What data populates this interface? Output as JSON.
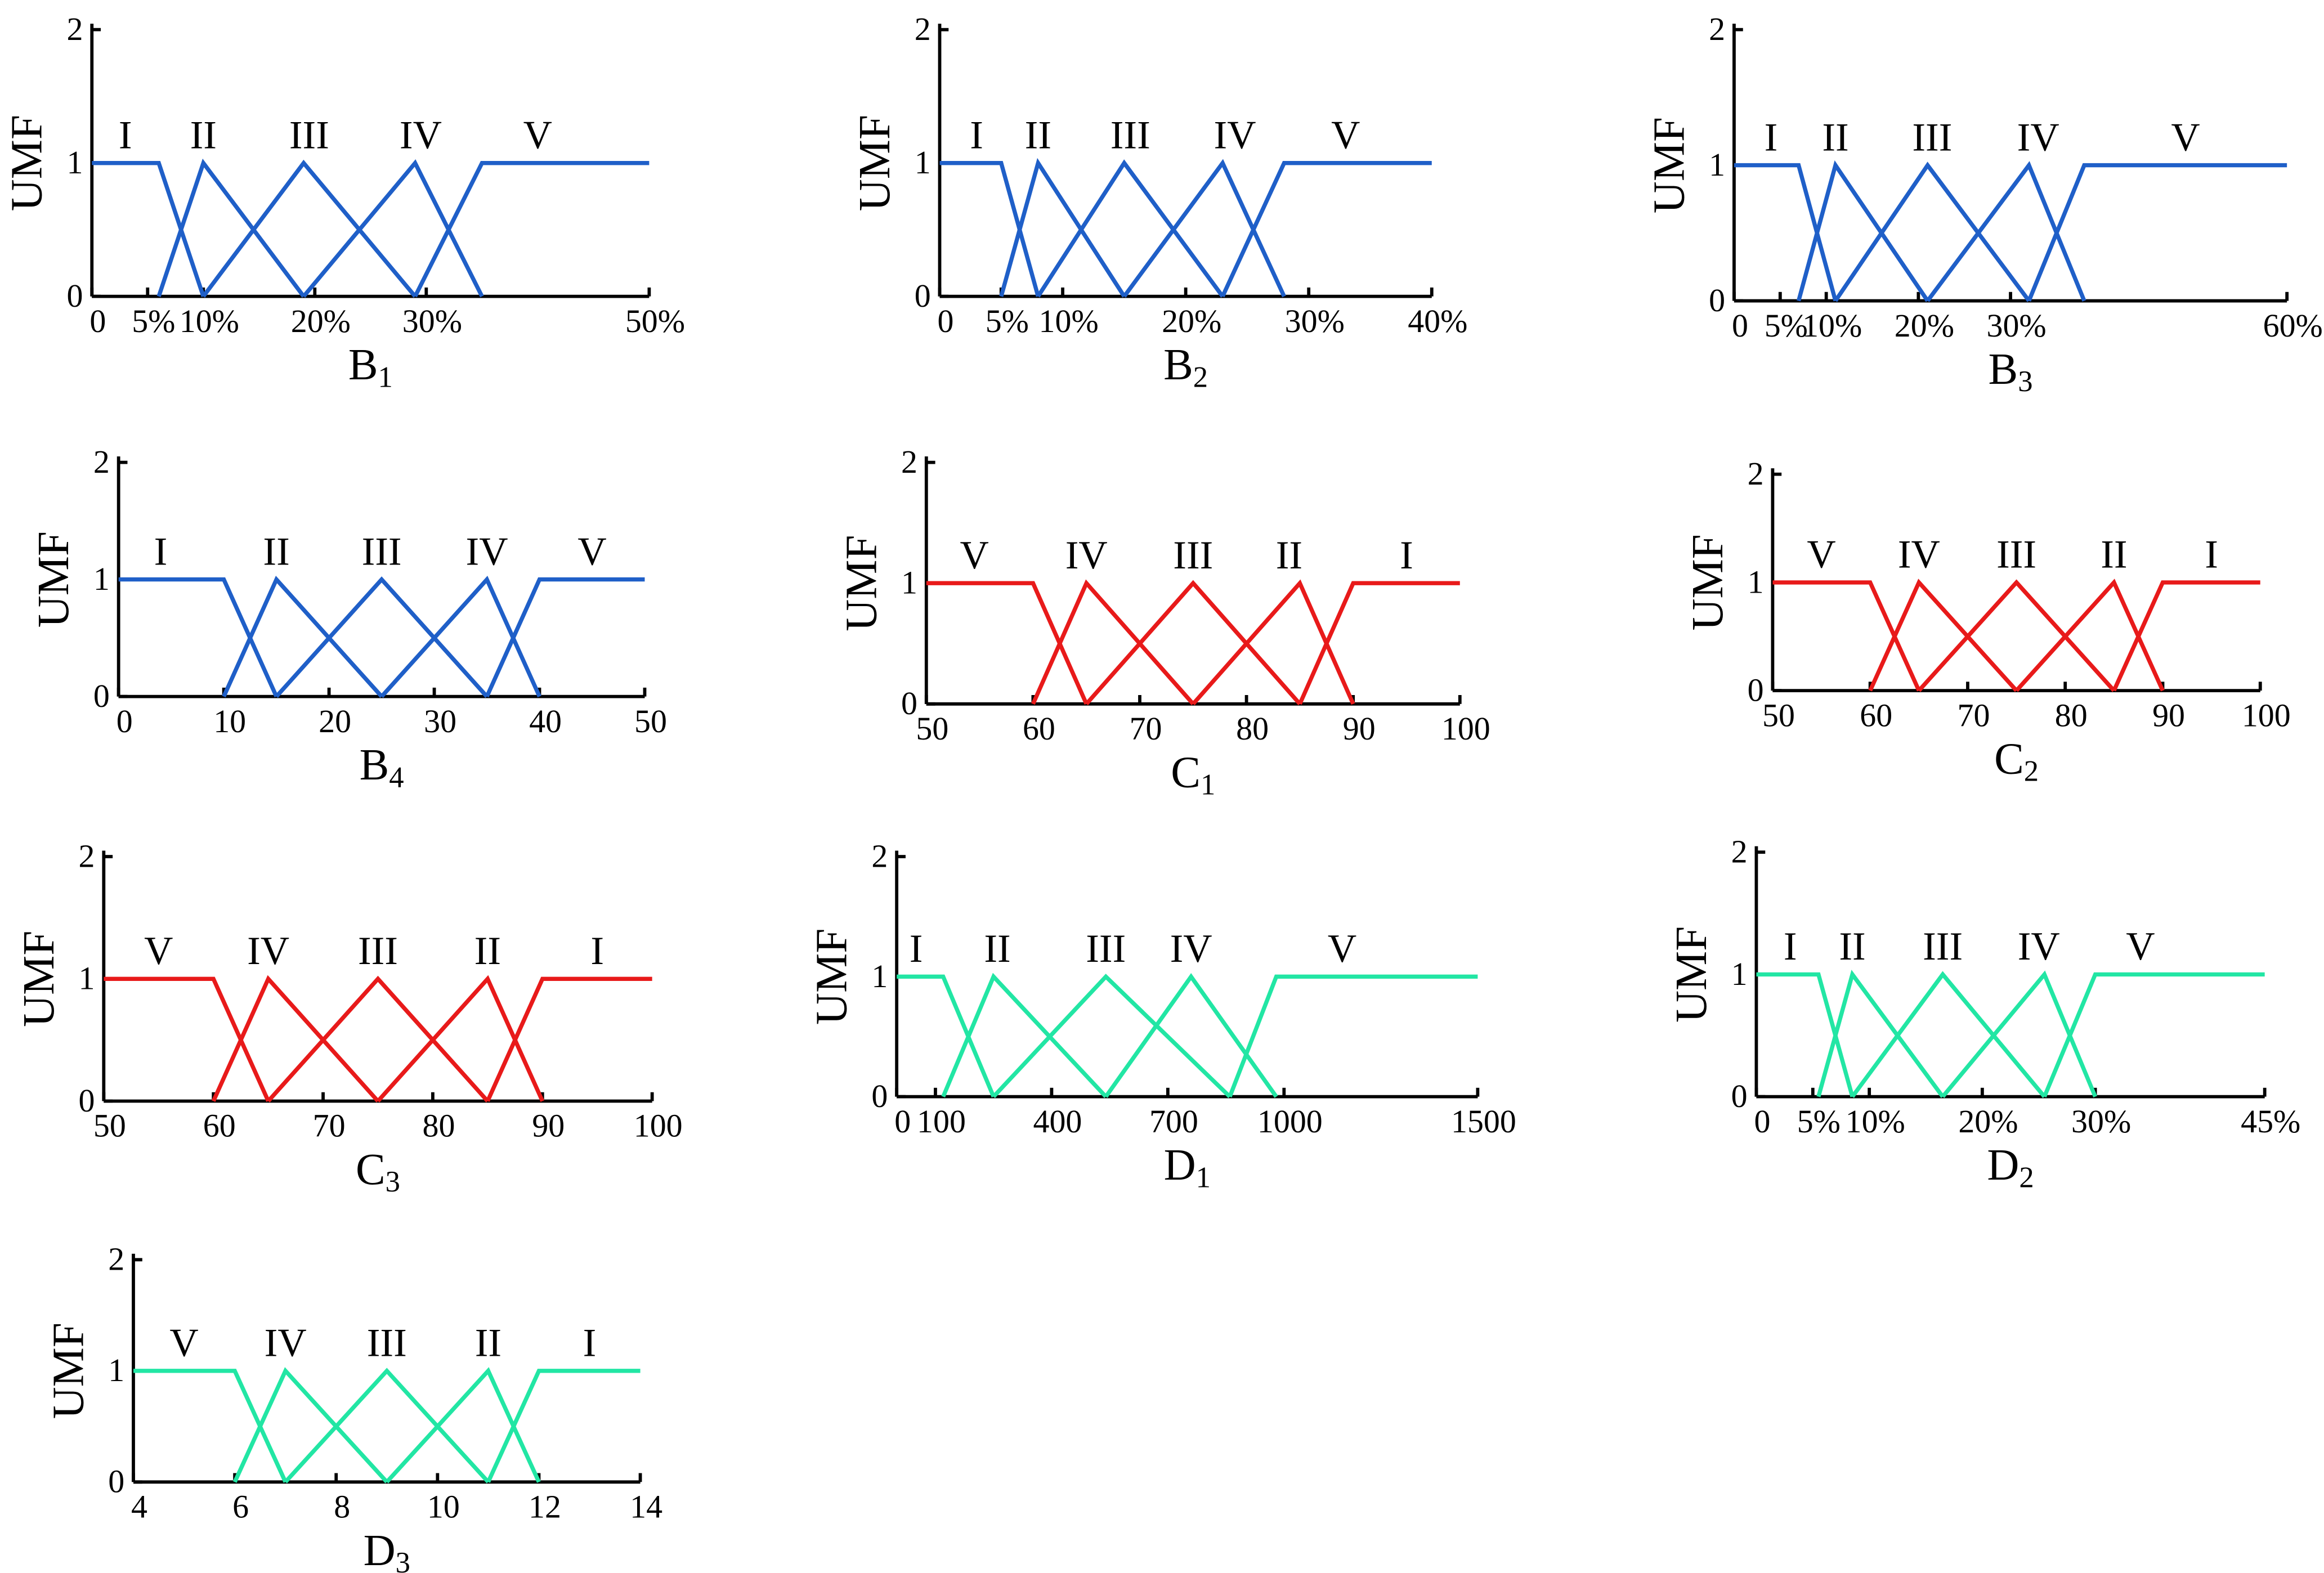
{
  "chart_data": [
    {
      "id": "B1",
      "type": "line",
      "title_main": "B",
      "title_sub": "1",
      "ylabel": "UMF",
      "y_ticks": [
        "0",
        "1",
        "2"
      ],
      "x_ticks": [
        {
          "v": 0,
          "t": "0"
        },
        {
          "v": 5,
          "t": "5%"
        },
        {
          "v": 10,
          "t": "10%"
        },
        {
          "v": 20,
          "t": "20%"
        },
        {
          "v": 30,
          "t": "30%"
        },
        {
          "v": 50,
          "t": "50%"
        }
      ],
      "xlim": [
        0,
        50
      ],
      "ylim": [
        0,
        2
      ],
      "color": "#1f5fc8",
      "series": [
        {
          "name": "I",
          "label": "I",
          "x": [
            0,
            6,
            10
          ],
          "y": [
            1,
            1,
            0
          ]
        },
        {
          "name": "II",
          "label": "II",
          "x": [
            6,
            10,
            19
          ],
          "y": [
            0,
            1,
            0
          ]
        },
        {
          "name": "III",
          "label": "III",
          "x": [
            10,
            19,
            29
          ],
          "y": [
            0,
            1,
            0
          ]
        },
        {
          "name": "IV",
          "label": "IV",
          "x": [
            19,
            29,
            35
          ],
          "y": [
            0,
            1,
            0
          ]
        },
        {
          "name": "V",
          "label": "V",
          "x": [
            29,
            35,
            50
          ],
          "y": [
            0,
            1,
            1
          ]
        }
      ],
      "label_x": [
        3,
        10,
        19.5,
        29.5,
        40
      ]
    },
    {
      "id": "B2",
      "type": "line",
      "title_main": "B",
      "title_sub": "2",
      "ylabel": "UMF",
      "y_ticks": [
        "0",
        "1",
        "2"
      ],
      "x_ticks": [
        {
          "v": 0,
          "t": "0"
        },
        {
          "v": 5,
          "t": "5%"
        },
        {
          "v": 10,
          "t": "10%"
        },
        {
          "v": 20,
          "t": "20%"
        },
        {
          "v": 30,
          "t": "30%"
        },
        {
          "v": 40,
          "t": "40%"
        }
      ],
      "xlim": [
        0,
        40
      ],
      "ylim": [
        0,
        2
      ],
      "color": "#1f5fc8",
      "series": [
        {
          "name": "I",
          "label": "I",
          "x": [
            0,
            5,
            8
          ],
          "y": [
            1,
            1,
            0
          ]
        },
        {
          "name": "II",
          "label": "II",
          "x": [
            5,
            8,
            15
          ],
          "y": [
            0,
            1,
            0
          ]
        },
        {
          "name": "III",
          "label": "III",
          "x": [
            8,
            15,
            23
          ],
          "y": [
            0,
            1,
            0
          ]
        },
        {
          "name": "IV",
          "label": "IV",
          "x": [
            15,
            23,
            28
          ],
          "y": [
            0,
            1,
            0
          ]
        },
        {
          "name": "V",
          "label": "V",
          "x": [
            23,
            28,
            40
          ],
          "y": [
            0,
            1,
            1
          ]
        }
      ],
      "label_x": [
        3,
        8,
        15.5,
        24,
        33
      ]
    },
    {
      "id": "B3",
      "type": "line",
      "title_main": "B",
      "title_sub": "3",
      "ylabel": "UMF",
      "y_ticks": [
        "0",
        "1",
        "2"
      ],
      "x_ticks": [
        {
          "v": 0,
          "t": "0"
        },
        {
          "v": 5,
          "t": "5%"
        },
        {
          "v": 10,
          "t": "10%"
        },
        {
          "v": 20,
          "t": "20%"
        },
        {
          "v": 30,
          "t": "30%"
        },
        {
          "v": 60,
          "t": "60%"
        }
      ],
      "xlim": [
        0,
        60
      ],
      "ylim": [
        0,
        2
      ],
      "color": "#1f5fc8",
      "series": [
        {
          "name": "I",
          "label": "I",
          "x": [
            0,
            7,
            11
          ],
          "y": [
            1,
            1,
            0
          ]
        },
        {
          "name": "II",
          "label": "II",
          "x": [
            7,
            11,
            21
          ],
          "y": [
            0,
            1,
            0
          ]
        },
        {
          "name": "III",
          "label": "III",
          "x": [
            11,
            21,
            32
          ],
          "y": [
            0,
            1,
            0
          ]
        },
        {
          "name": "IV",
          "label": "IV",
          "x": [
            21,
            32,
            38
          ],
          "y": [
            0,
            1,
            0
          ]
        },
        {
          "name": "V",
          "label": "V",
          "x": [
            32,
            38,
            60
          ],
          "y": [
            0,
            1,
            1
          ]
        }
      ],
      "label_x": [
        4,
        11,
        21.5,
        33,
        49
      ]
    },
    {
      "id": "B4",
      "type": "line",
      "title_main": "B",
      "title_sub": "4",
      "ylabel": "UMF",
      "y_ticks": [
        "0",
        "1",
        "2"
      ],
      "x_ticks": [
        {
          "v": 0,
          "t": "0"
        },
        {
          "v": 10,
          "t": "10"
        },
        {
          "v": 20,
          "t": "20"
        },
        {
          "v": 30,
          "t": "30"
        },
        {
          "v": 40,
          "t": "40"
        },
        {
          "v": 50,
          "t": "50"
        }
      ],
      "xlim": [
        0,
        50
      ],
      "ylim": [
        0,
        2
      ],
      "color": "#1f5fc8",
      "series": [
        {
          "name": "I",
          "label": "I",
          "x": [
            0,
            10,
            15
          ],
          "y": [
            1,
            1,
            0
          ]
        },
        {
          "name": "II",
          "label": "II",
          "x": [
            10,
            15,
            25
          ],
          "y": [
            0,
            1,
            0
          ]
        },
        {
          "name": "III",
          "label": "III",
          "x": [
            15,
            25,
            35
          ],
          "y": [
            0,
            1,
            0
          ]
        },
        {
          "name": "IV",
          "label": "IV",
          "x": [
            25,
            35,
            40
          ],
          "y": [
            0,
            1,
            0
          ]
        },
        {
          "name": "V",
          "label": "V",
          "x": [
            35,
            40,
            50
          ],
          "y": [
            0,
            1,
            1
          ]
        }
      ],
      "label_x": [
        4,
        15,
        25,
        35,
        45
      ]
    },
    {
      "id": "C1",
      "type": "line",
      "title_main": "C",
      "title_sub": "1",
      "ylabel": "UMF",
      "y_ticks": [
        "0",
        "1",
        "2"
      ],
      "x_ticks": [
        {
          "v": 50,
          "t": "50"
        },
        {
          "v": 60,
          "t": "60"
        },
        {
          "v": 70,
          "t": "70"
        },
        {
          "v": 80,
          "t": "80"
        },
        {
          "v": 90,
          "t": "90"
        },
        {
          "v": 100,
          "t": "100"
        }
      ],
      "xlim": [
        50,
        100
      ],
      "ylim": [
        0,
        2
      ],
      "color": "#e81a1a",
      "series": [
        {
          "name": "V",
          "label": "V",
          "x": [
            50,
            60,
            65
          ],
          "y": [
            1,
            1,
            0
          ]
        },
        {
          "name": "IV",
          "label": "IV",
          "x": [
            60,
            65,
            75
          ],
          "y": [
            0,
            1,
            0
          ]
        },
        {
          "name": "III",
          "label": "III",
          "x": [
            65,
            75,
            85
          ],
          "y": [
            0,
            1,
            0
          ]
        },
        {
          "name": "II",
          "label": "II",
          "x": [
            75,
            85,
            90
          ],
          "y": [
            0,
            1,
            0
          ]
        },
        {
          "name": "I",
          "label": "I",
          "x": [
            85,
            90,
            100
          ],
          "y": [
            0,
            1,
            1
          ]
        }
      ],
      "label_x": [
        54.5,
        65,
        75,
        84,
        95
      ]
    },
    {
      "id": "C2",
      "type": "line",
      "title_main": "C",
      "title_sub": "2",
      "ylabel": "UMF",
      "y_ticks": [
        "0",
        "1",
        "2"
      ],
      "x_ticks": [
        {
          "v": 50,
          "t": "50"
        },
        {
          "v": 60,
          "t": "60"
        },
        {
          "v": 70,
          "t": "70"
        },
        {
          "v": 80,
          "t": "80"
        },
        {
          "v": 90,
          "t": "90"
        },
        {
          "v": 100,
          "t": "100"
        }
      ],
      "xlim": [
        50,
        100
      ],
      "ylim": [
        0,
        2
      ],
      "color": "#e81a1a",
      "series": [
        {
          "name": "V",
          "label": "V",
          "x": [
            50,
            60,
            65
          ],
          "y": [
            1,
            1,
            0
          ]
        },
        {
          "name": "IV",
          "label": "IV",
          "x": [
            60,
            65,
            75
          ],
          "y": [
            0,
            1,
            0
          ]
        },
        {
          "name": "III",
          "label": "III",
          "x": [
            65,
            75,
            85
          ],
          "y": [
            0,
            1,
            0
          ]
        },
        {
          "name": "II",
          "label": "II",
          "x": [
            75,
            85,
            90
          ],
          "y": [
            0,
            1,
            0
          ]
        },
        {
          "name": "I",
          "label": "I",
          "x": [
            85,
            90,
            100
          ],
          "y": [
            0,
            1,
            1
          ]
        }
      ],
      "label_x": [
        55,
        65,
        75,
        85,
        95
      ]
    },
    {
      "id": "C3",
      "type": "line",
      "title_main": "C",
      "title_sub": "3",
      "ylabel": "UMF",
      "y_ticks": [
        "0",
        "1",
        "2"
      ],
      "x_ticks": [
        {
          "v": 50,
          "t": "50"
        },
        {
          "v": 60,
          "t": "60"
        },
        {
          "v": 70,
          "t": "70"
        },
        {
          "v": 80,
          "t": "80"
        },
        {
          "v": 90,
          "t": "90"
        },
        {
          "v": 100,
          "t": "100"
        }
      ],
      "xlim": [
        50,
        100
      ],
      "ylim": [
        0,
        2
      ],
      "color": "#e81a1a",
      "series": [
        {
          "name": "V",
          "label": "V",
          "x": [
            50,
            60,
            65
          ],
          "y": [
            1,
            1,
            0
          ]
        },
        {
          "name": "IV",
          "label": "IV",
          "x": [
            60,
            65,
            75
          ],
          "y": [
            0,
            1,
            0
          ]
        },
        {
          "name": "III",
          "label": "III",
          "x": [
            65,
            75,
            85
          ],
          "y": [
            0,
            1,
            0
          ]
        },
        {
          "name": "II",
          "label": "II",
          "x": [
            75,
            85,
            90
          ],
          "y": [
            0,
            1,
            0
          ]
        },
        {
          "name": "I",
          "label": "I",
          "x": [
            85,
            90,
            100
          ],
          "y": [
            0,
            1,
            1
          ]
        }
      ],
      "label_x": [
        55,
        65,
        75,
        85,
        95
      ]
    },
    {
      "id": "D1",
      "type": "line",
      "title_main": "D",
      "title_sub": "1",
      "ylabel": "UMF",
      "y_ticks": [
        "0",
        "1",
        "2"
      ],
      "x_ticks": [
        {
          "v": 0,
          "t": "0"
        },
        {
          "v": 100,
          "t": "100"
        },
        {
          "v": 400,
          "t": "400"
        },
        {
          "v": 700,
          "t": "700"
        },
        {
          "v": 1000,
          "t": "1000"
        },
        {
          "v": 1500,
          "t": "1500"
        }
      ],
      "xlim": [
        0,
        1500
      ],
      "ylim": [
        0,
        2
      ],
      "color": "#22e6a4",
      "series": [
        {
          "name": "I",
          "label": "I",
          "x": [
            0,
            120,
            250
          ],
          "y": [
            1,
            1,
            0
          ]
        },
        {
          "name": "II",
          "label": "II",
          "x": [
            120,
            250,
            540
          ],
          "y": [
            0,
            1,
            0
          ]
        },
        {
          "name": "III",
          "label": "III",
          "x": [
            250,
            540,
            860
          ],
          "y": [
            0,
            1,
            0
          ]
        },
        {
          "name": "IV",
          "label": "IV",
          "x": [
            540,
            760,
            980
          ],
          "y": [
            0,
            1,
            0
          ]
        },
        {
          "name": "V",
          "label": "V",
          "x": [
            860,
            980,
            1500
          ],
          "y": [
            0,
            1,
            1
          ]
        }
      ],
      "label_x": [
        50,
        260,
        540,
        760,
        1150
      ]
    },
    {
      "id": "D2",
      "type": "line",
      "title_main": "D",
      "title_sub": "2",
      "ylabel": "UMF",
      "y_ticks": [
        "0",
        "1",
        "2"
      ],
      "x_ticks": [
        {
          "v": 0,
          "t": "0"
        },
        {
          "v": 5,
          "t": "5%"
        },
        {
          "v": 10,
          "t": "10%"
        },
        {
          "v": 20,
          "t": "20%"
        },
        {
          "v": 30,
          "t": "30%"
        },
        {
          "v": 45,
          "t": "45%"
        }
      ],
      "xlim": [
        0,
        45
      ],
      "ylim": [
        0,
        2
      ],
      "color": "#22e6a4",
      "series": [
        {
          "name": "I",
          "label": "I",
          "x": [
            0,
            5.5,
            8.5
          ],
          "y": [
            1,
            1,
            0
          ]
        },
        {
          "name": "II",
          "label": "II",
          "x": [
            5.5,
            8.5,
            16.5
          ],
          "y": [
            0,
            1,
            0
          ]
        },
        {
          "name": "III",
          "label": "III",
          "x": [
            8.5,
            16.5,
            25.5
          ],
          "y": [
            0,
            1,
            0
          ]
        },
        {
          "name": "IV",
          "label": "IV",
          "x": [
            16.5,
            25.5,
            30
          ],
          "y": [
            0,
            1,
            0
          ]
        },
        {
          "name": "V",
          "label": "V",
          "x": [
            25.5,
            30,
            45
          ],
          "y": [
            0,
            1,
            1
          ]
        }
      ],
      "label_x": [
        3,
        8.5,
        16.5,
        25,
        34
      ]
    },
    {
      "id": "D3",
      "type": "line",
      "title_main": "D",
      "title_sub": "3",
      "ylabel": "UMF",
      "y_ticks": [
        "0",
        "1",
        "2"
      ],
      "x_ticks": [
        {
          "v": 4,
          "t": "4"
        },
        {
          "v": 6,
          "t": "6"
        },
        {
          "v": 8,
          "t": "8"
        },
        {
          "v": 10,
          "t": "10"
        },
        {
          "v": 12,
          "t": "12"
        },
        {
          "v": 14,
          "t": "14"
        }
      ],
      "xlim": [
        4,
        14
      ],
      "ylim": [
        0,
        2
      ],
      "color": "#22e6a4",
      "series": [
        {
          "name": "V",
          "label": "V",
          "x": [
            4,
            6,
            7
          ],
          "y": [
            1,
            1,
            0
          ]
        },
        {
          "name": "IV",
          "label": "IV",
          "x": [
            6,
            7,
            9
          ],
          "y": [
            0,
            1,
            0
          ]
        },
        {
          "name": "III",
          "label": "III",
          "x": [
            7,
            9,
            11
          ],
          "y": [
            0,
            1,
            0
          ]
        },
        {
          "name": "II",
          "label": "II",
          "x": [
            9,
            11,
            12
          ],
          "y": [
            0,
            1,
            0
          ]
        },
        {
          "name": "I",
          "label": "I",
          "x": [
            11,
            12,
            14
          ],
          "y": [
            0,
            1,
            1
          ]
        }
      ],
      "label_x": [
        5,
        7,
        9,
        11,
        13
      ]
    }
  ]
}
